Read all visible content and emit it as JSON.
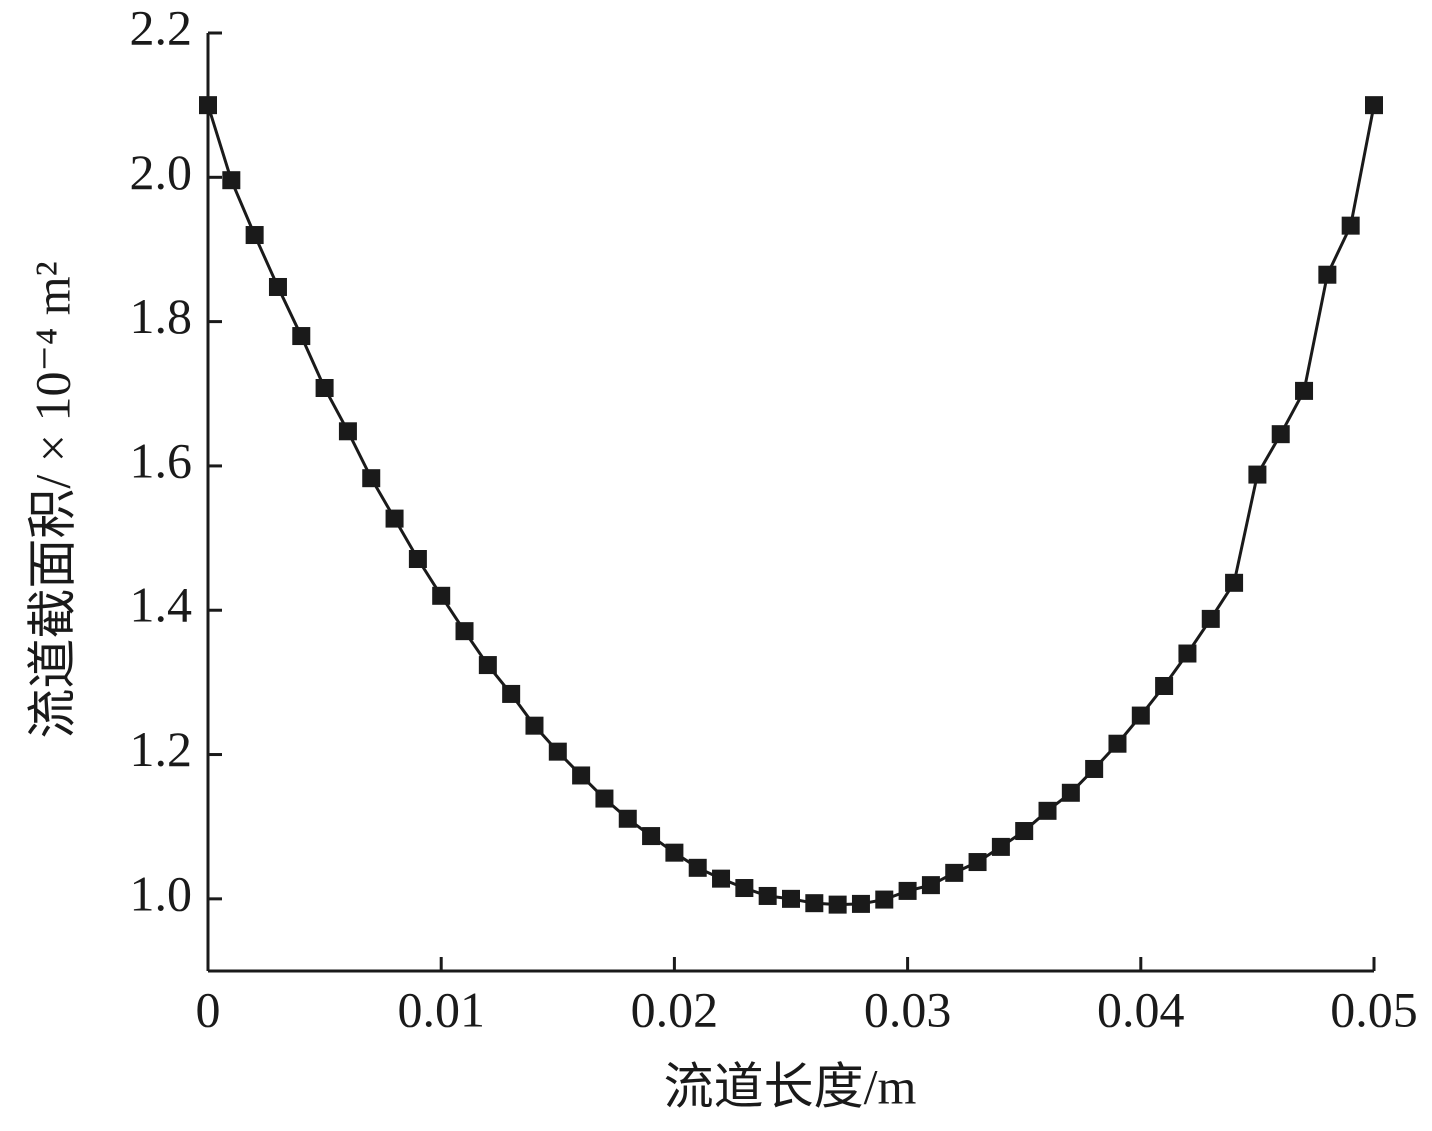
{
  "chart_data": {
    "type": "line",
    "xlabel": "流道长度/m",
    "ylabel": "流道截面积/ × 10⁻⁴ m²",
    "x": [
      0,
      0.001,
      0.002,
      0.003,
      0.004,
      0.005,
      0.006,
      0.007,
      0.008,
      0.009,
      0.01,
      0.011,
      0.012,
      0.013,
      0.014,
      0.015,
      0.016,
      0.017,
      0.018,
      0.019,
      0.02,
      0.021,
      0.022,
      0.023,
      0.024,
      0.025,
      0.026,
      0.027,
      0.028,
      0.029,
      0.03,
      0.031,
      0.032,
      0.033,
      0.034,
      0.035,
      0.036,
      0.037,
      0.038,
      0.039,
      0.04,
      0.041,
      0.042,
      0.043,
      0.044,
      0.045,
      0.046,
      0.047,
      0.048,
      0.049,
      0.05
    ],
    "series": [
      {
        "color": "#1a1a1a",
        "values": [
          2.1,
          1.996,
          1.92,
          1.848,
          1.78,
          1.708,
          1.648,
          1.583,
          1.527,
          1.471,
          1.42,
          1.371,
          1.324,
          1.284,
          1.24,
          1.204,
          1.171,
          1.139,
          1.111,
          1.087,
          1.064,
          1.043,
          1.028,
          1.015,
          1.004,
          1.0,
          0.994,
          0.992,
          0.993,
          0.999,
          1.011,
          1.019,
          1.036,
          1.051,
          1.072,
          1.094,
          1.122,
          1.147,
          1.18,
          1.215,
          1.254,
          1.295,
          1.34,
          1.388,
          1.438,
          1.588,
          1.644,
          1.704,
          1.865,
          1.933,
          2.1
        ]
      }
    ],
    "xlim": [
      0,
      0.05
    ],
    "xticks": [
      0,
      0.01,
      0.02,
      0.03,
      0.04,
      0.05
    ],
    "ylim": [
      0.9,
      2.2
    ],
    "yticks": [
      {
        "value": 1,
        "label": "1.0"
      },
      1.2,
      1.4,
      1.6,
      1.8,
      {
        "value": 2,
        "label": "2.0"
      },
      2.2
    ],
    "grid": false,
    "marker": "square"
  }
}
